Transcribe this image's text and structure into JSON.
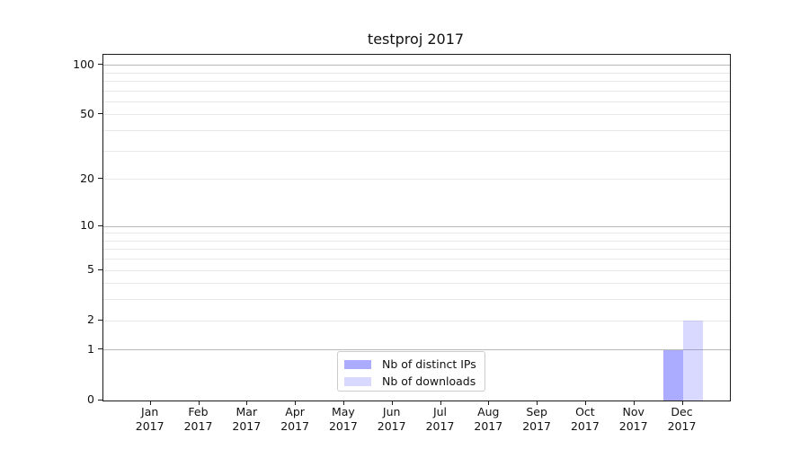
{
  "chart_data": {
    "type": "bar",
    "title": "testproj 2017",
    "categories": [
      "Jan 2017",
      "Feb 2017",
      "Mar 2017",
      "Apr 2017",
      "May 2017",
      "Jun 2017",
      "Jul 2017",
      "Aug 2017",
      "Sep 2017",
      "Oct 2017",
      "Nov 2017",
      "Dec 2017"
    ],
    "series": [
      {
        "name": "Nb of distinct IPs",
        "color": "rgba(102,102,255,0.55)",
        "values": [
          0,
          0,
          0,
          0,
          0,
          0,
          0,
          0,
          0,
          0,
          0,
          1
        ]
      },
      {
        "name": "Nb of downloads",
        "color": "rgba(102,102,255,0.25)",
        "values": [
          0,
          0,
          0,
          0,
          0,
          0,
          0,
          0,
          0,
          0,
          0,
          2
        ]
      }
    ],
    "xlabel": "",
    "ylabel": "",
    "yaxis": {
      "scale": "log10(1+y)",
      "ticks": [
        0,
        1,
        2,
        5,
        10,
        20,
        50,
        100
      ],
      "gridlines_strong": [
        1,
        10,
        100
      ],
      "gridlines_faint": [
        2,
        3,
        4,
        5,
        6,
        7,
        8,
        9,
        20,
        30,
        40,
        50,
        60,
        70,
        80,
        90
      ],
      "ylim": [
        0,
        115
      ]
    },
    "grid": "horizontal",
    "legend_position": "lower center",
    "colors": {
      "grid_strong": "#b8b8b8",
      "grid_faint": "#e8e8e8",
      "spine": "#1a1a1a",
      "text": "#111111",
      "background": "#ffffff"
    }
  }
}
